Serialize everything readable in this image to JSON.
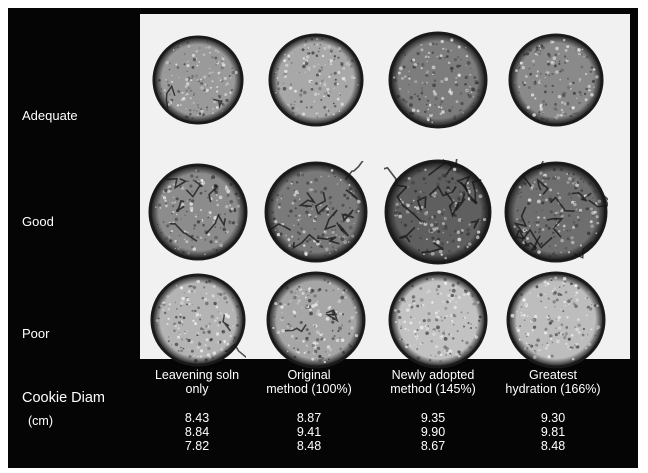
{
  "rows": [
    {
      "label": "Adequate"
    },
    {
      "label": "Good"
    },
    {
      "label": "Poor"
    }
  ],
  "columns": [
    {
      "line1": "Leavening soln",
      "line2": "only",
      "values": [
        "8.43",
        "8.84",
        "7.82"
      ]
    },
    {
      "line1": "Original",
      "line2": "method (100%)",
      "values": [
        "8.87",
        "9.41",
        "8.48"
      ]
    },
    {
      "line1": "Newly adopted",
      "line2": "method (145%)",
      "values": [
        "9.35",
        "9.90",
        "8.67"
      ]
    },
    {
      "line1": "Greatest",
      "line2": "hydration (166%)",
      "values": [
        "9.30",
        "9.81",
        "8.48"
      ]
    }
  ],
  "measure": {
    "label": "Cookie Diam",
    "unit": "(cm)"
  },
  "colors": {
    "background": "#050505",
    "photo_background": "#f1f1f1",
    "text": "#ffffff",
    "cookie_rim": "#141414"
  }
}
